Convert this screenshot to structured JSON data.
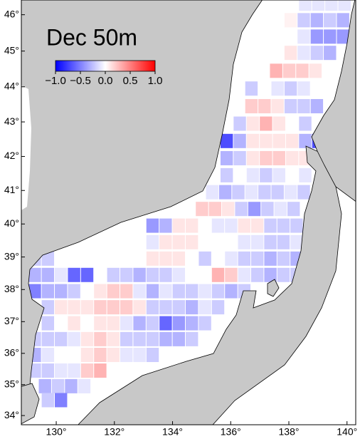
{
  "chart_data": {
    "type": "grid-map",
    "title": "Dec 50m",
    "xlim": [
      128.8,
      140.3
    ],
    "ylim": [
      33.7,
      46.4
    ],
    "xticks": [
      {
        "value": 130,
        "label": "130°"
      },
      {
        "value": 132,
        "label": "132°"
      },
      {
        "value": 134,
        "label": "134°"
      },
      {
        "value": 136,
        "label": "136°"
      },
      {
        "value": 138,
        "label": "138°"
      },
      {
        "value": 140,
        "label": "140°"
      }
    ],
    "yticks": [
      {
        "value": 34,
        "label": "34°"
      },
      {
        "value": 35,
        "label": "35°"
      },
      {
        "value": 36,
        "label": "36°"
      },
      {
        "value": 37,
        "label": "37°"
      },
      {
        "value": 38,
        "label": "38°"
      },
      {
        "value": 39,
        "label": "39°"
      },
      {
        "value": 40,
        "label": "40°"
      },
      {
        "value": 41,
        "label": "41°"
      },
      {
        "value": 42,
        "label": "42°"
      },
      {
        "value": 43,
        "label": "43°"
      },
      {
        "value": 44,
        "label": "44°"
      },
      {
        "value": 45,
        "label": "45°"
      },
      {
        "value": 46,
        "label": "46°"
      }
    ],
    "clim": [
      -1,
      1
    ],
    "cticks": [
      {
        "value": -1,
        "label": "−1.0"
      },
      {
        "value": -0.5,
        "label": "−0.5"
      },
      {
        "value": 0,
        "label": "0.0"
      },
      {
        "value": 0.5,
        "label": "0.5"
      },
      {
        "value": 1,
        "label": "1.0"
      }
    ],
    "rows": [
      {
        "lat": 46.3,
        "lon": 138.35,
        "values": [
          -0.1,
          -0.1,
          -0.1,
          -0.1
        ]
      },
      {
        "lat": 45.85,
        "lon": 137.85,
        "values": [
          0.05,
          -0.2,
          -0.3,
          -0.2,
          -0.3
        ]
      },
      {
        "lat": 45.4,
        "lon": 137.85,
        "values": [
          0,
          -0.1,
          -0.4,
          -0.4,
          -0.4
        ]
      },
      {
        "lat": 44.95,
        "lon": 137.85,
        "values": [
          0.1,
          -0.1,
          -0.2,
          -0.3
        ]
      },
      {
        "lat": 44.45,
        "lon": 137.35,
        "values": [
          0.3,
          0.2,
          0.2,
          0.1
        ]
      },
      {
        "lat": 43.95,
        "lon": 136.5,
        "values": [
          -0.2,
          0,
          -0.1,
          -0.2,
          -0.1
        ]
      },
      {
        "lat": 43.45,
        "lon": 136.5,
        "values": [
          0.2,
          0.2,
          0.1,
          -0.2,
          -0.2,
          -0.3
        ]
      },
      {
        "lat": 42.95,
        "lon": 136.1,
        "values": [
          -0.2,
          0.1,
          0.3,
          0.1,
          0,
          -0.2
        ]
      },
      {
        "lat": 42.45,
        "lon": 135.65,
        "values": [
          -0.7,
          -0.3,
          0.1,
          0.1,
          0.1,
          0.1,
          -0.3,
          -0.7,
          -0.5
        ]
      },
      {
        "lat": 41.95,
        "lon": 135.65,
        "values": [
          -0.3,
          -0.2,
          0.1,
          0.2,
          0.2,
          0.1,
          0.1
        ]
      },
      {
        "lat": 41.45,
        "lon": 135.65,
        "values": [
          -0.2,
          0,
          -0.1,
          -0.2,
          -0.1,
          0,
          -0.1
        ]
      },
      {
        "lat": 40.95,
        "lon": 135.15,
        "values": [
          -0.1,
          -0.3,
          -0.2,
          -0.1,
          -0.2,
          -0.2,
          -0.1,
          -0.2
        ]
      },
      {
        "lat": 40.45,
        "lon": 134.8,
        "values": [
          0.2,
          0.2,
          0.1,
          -0.2,
          -0.4,
          -0.2,
          -0.1,
          -0.2
        ]
      },
      {
        "lat": 39.95,
        "lon": 133.1,
        "values": [
          -0.4,
          -0.3,
          0.1,
          0.1,
          0,
          -0.1,
          -0.1,
          0.1,
          0.1,
          -0.2,
          -0.2,
          -0.2,
          -0.1
        ]
      },
      {
        "lat": 39.45,
        "lon": 133.1,
        "values": [
          -0.1,
          0.1,
          0.1,
          0.1,
          0,
          0,
          0,
          -0.1,
          -0.1,
          -0.2,
          -0.2,
          -0.1,
          -0.2
        ]
      },
      {
        "lat": 38.95,
        "lon": 129.05,
        "values": [
          -0.2,
          -0.2,
          null,
          null,
          null,
          null,
          null,
          null,
          null,
          0.1,
          0.1,
          0.1,
          0,
          -0.2,
          0,
          -0.1,
          -0.2,
          -0.2,
          -0.3,
          -0.2,
          -0.3
        ]
      },
      {
        "lat": 38.45,
        "lon": 129.05,
        "values": [
          -0.3,
          -0.3,
          -0.1,
          -0.6,
          -0.6,
          null,
          -0.2,
          -0.2,
          -0.3,
          -0.2,
          -0.2,
          -0.1,
          0,
          0,
          0.3,
          0.2,
          -0.1,
          -0.2,
          -0.3,
          -0.2,
          -0.2
        ]
      },
      {
        "lat": 37.95,
        "lon": 129.05,
        "values": [
          -0.5,
          -0.3,
          -0.3,
          -0.2,
          0,
          0.1,
          0.2,
          0.2,
          -0.1,
          -0.3,
          -0.1,
          -0.2,
          -0.2,
          -0.1,
          -0.2,
          -0.3,
          -0.2
        ]
      },
      {
        "lat": 37.45,
        "lon": 129.5,
        "values": [
          -0.2,
          0.1,
          0.1,
          0.1,
          0.2,
          0.2,
          0.2,
          0.1,
          -0.2,
          -0.2,
          -0.2,
          -0.3,
          -0.1,
          -0.2
        ]
      },
      {
        "lat": 36.95,
        "lon": 129.5,
        "values": [
          -0.2,
          0,
          0.1,
          0,
          0.1,
          0.1,
          -0.1,
          -0.3,
          -0.2,
          -0.6,
          -0.4,
          -0.3,
          -0.2
        ]
      },
      {
        "lat": 36.45,
        "lon": 129.05,
        "values": [
          -0.2,
          -0.2,
          -0.2,
          -0.1,
          0.1,
          0.2,
          0.1,
          -0.2,
          -0.2,
          -0.2,
          -0.3,
          -0.3,
          -0.2
        ]
      },
      {
        "lat": 35.95,
        "lon": 129.05,
        "values": [
          -0.3,
          -0.1,
          0,
          0,
          0.1,
          0.2,
          0.1,
          -0.1,
          -0.1,
          -0.2
        ]
      },
      {
        "lat": 35.45,
        "lon": 129.05,
        "values": [
          -0.2,
          -0.2,
          -0.1,
          -0.1,
          0.2,
          0.3
        ]
      },
      {
        "lat": 34.95,
        "lon": 129.4,
        "values": [
          -0.3,
          -0.2,
          -0.3,
          -0.1
        ]
      },
      {
        "lat": 34.5,
        "lon": 129.5,
        "values": [
          -0.2,
          -0.5
        ]
      }
    ]
  }
}
